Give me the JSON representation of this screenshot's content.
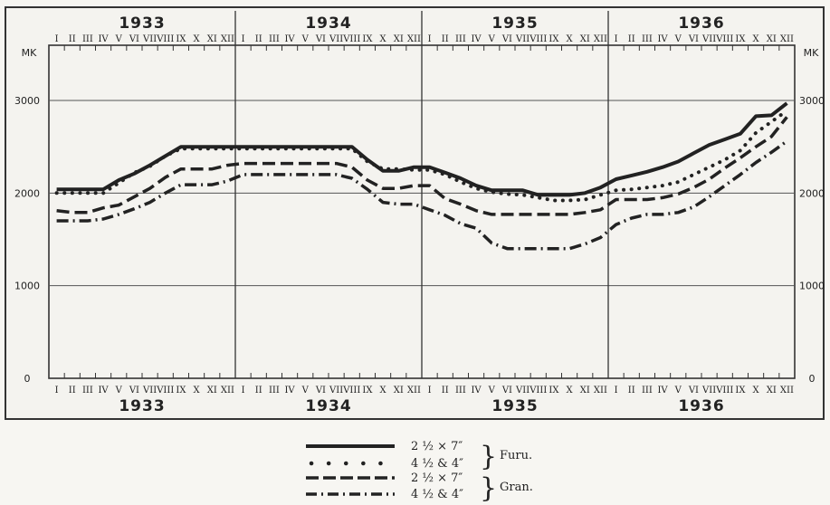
{
  "chart_data": {
    "type": "line",
    "unit_label": "MK",
    "years": [
      "1933",
      "1934",
      "1935",
      "1936"
    ],
    "months": [
      "I",
      "II",
      "III",
      "IV",
      "V",
      "VI",
      "VII",
      "VIII",
      "IX",
      "X",
      "XI",
      "XII"
    ],
    "ylim": [
      0,
      3000
    ],
    "yticks": [
      "0",
      "1000",
      "2000",
      "3000"
    ],
    "grid": true,
    "x": [
      "1933-01",
      "1933-02",
      "1933-03",
      "1933-04",
      "1933-05",
      "1933-06",
      "1933-07",
      "1933-08",
      "1933-09",
      "1933-10",
      "1933-11",
      "1933-12",
      "1934-01",
      "1934-02",
      "1934-03",
      "1934-04",
      "1934-05",
      "1934-06",
      "1934-07",
      "1934-08",
      "1934-09",
      "1934-10",
      "1934-11",
      "1934-12",
      "1935-01",
      "1935-02",
      "1935-03",
      "1935-04",
      "1935-05",
      "1935-06",
      "1935-07",
      "1935-08",
      "1935-09",
      "1935-10",
      "1935-11",
      "1935-12",
      "1936-01",
      "1936-02",
      "1936-03",
      "1936-04",
      "1936-05",
      "1936-06",
      "1936-07",
      "1936-08",
      "1936-09",
      "1936-10",
      "1936-11",
      "1936-12"
    ],
    "series": [
      {
        "name": "2 ½ × 7″ Furu",
        "style": "solid",
        "values": [
          2040,
          2040,
          2040,
          2040,
          2140,
          2210,
          2300,
          2400,
          2500,
          2500,
          2500,
          2500,
          2500,
          2500,
          2500,
          2500,
          2500,
          2500,
          2500,
          2500,
          2360,
          2240,
          2240,
          2280,
          2280,
          2220,
          2160,
          2080,
          2030,
          2030,
          2030,
          1980,
          1980,
          1980,
          2000,
          2060,
          2150,
          2190,
          2230,
          2280,
          2340,
          2430,
          2520,
          2580,
          2640,
          2830,
          2840,
          2970
        ]
      },
      {
        "name": "4 ½ & 4″ Furu",
        "style": "dotted",
        "values": [
          2000,
          2000,
          2000,
          2000,
          2110,
          2220,
          2290,
          2400,
          2480,
          2480,
          2480,
          2480,
          2480,
          2480,
          2480,
          2480,
          2480,
          2480,
          2480,
          2480,
          2340,
          2260,
          2260,
          2250,
          2250,
          2200,
          2120,
          2050,
          2010,
          1990,
          1980,
          1950,
          1920,
          1920,
          1930,
          1980,
          2030,
          2040,
          2060,
          2080,
          2120,
          2200,
          2280,
          2360,
          2460,
          2650,
          2770,
          2890
        ]
      },
      {
        "name": "2 ½ × 7″ Gran",
        "style": "dashed",
        "values": [
          1810,
          1790,
          1790,
          1840,
          1870,
          1960,
          2050,
          2170,
          2260,
          2260,
          2260,
          2300,
          2320,
          2320,
          2320,
          2320,
          2320,
          2320,
          2320,
          2280,
          2140,
          2050,
          2050,
          2080,
          2080,
          1940,
          1880,
          1810,
          1770,
          1770,
          1770,
          1770,
          1770,
          1770,
          1790,
          1820,
          1930,
          1930,
          1930,
          1950,
          1990,
          2060,
          2150,
          2270,
          2380,
          2500,
          2610,
          2820
        ]
      },
      {
        "name": "4 ½ & 4″ Gran",
        "style": "dashdot",
        "values": [
          1700,
          1700,
          1700,
          1720,
          1770,
          1830,
          1900,
          2000,
          2090,
          2090,
          2090,
          2130,
          2200,
          2200,
          2200,
          2200,
          2200,
          2200,
          2200,
          2160,
          2040,
          1900,
          1880,
          1880,
          1820,
          1760,
          1670,
          1620,
          1460,
          1400,
          1400,
          1400,
          1400,
          1400,
          1450,
          1520,
          1660,
          1730,
          1770,
          1770,
          1790,
          1850,
          1960,
          2080,
          2200,
          2330,
          2440,
          2560
        ]
      }
    ]
  },
  "legend": {
    "row1": {
      "dim": "2 ½ × 7″"
    },
    "row2": {
      "dim": "4 ½ & 4″"
    },
    "row3": {
      "dim": "2 ½ × 7″"
    },
    "row4": {
      "dim": "4 ½ & 4″"
    },
    "furu_label": "Furu.",
    "gran_label": "Gran."
  }
}
